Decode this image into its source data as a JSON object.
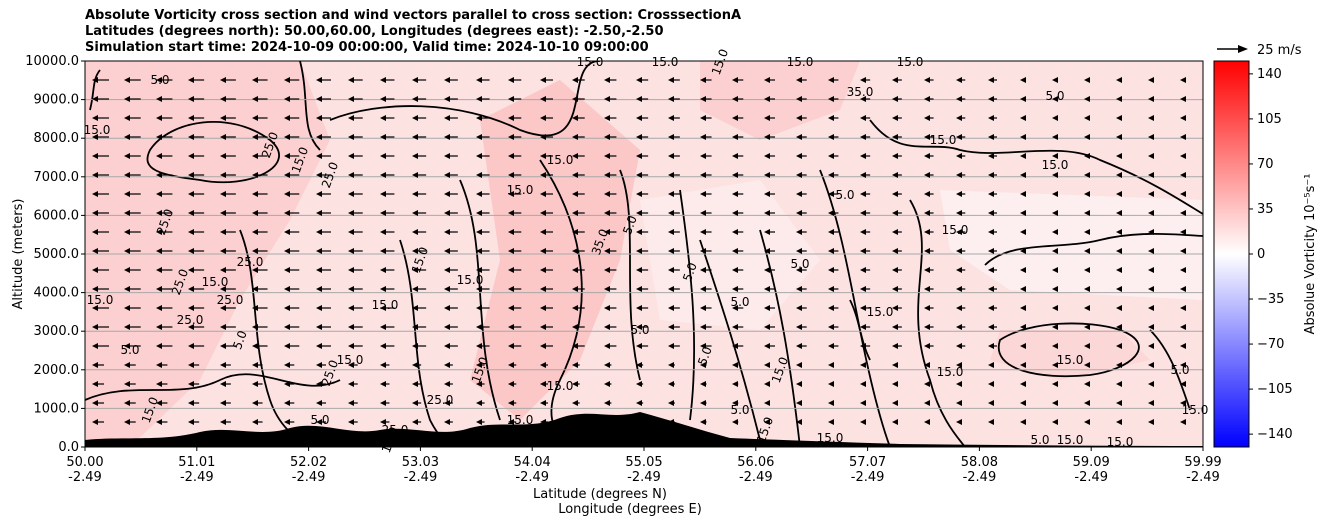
{
  "chart_data": {
    "type": "heatmap",
    "title_lines": [
      "Absolute Vorticity cross section and wind vectors parallel to cross section: CrosssectionA",
      "Latitudes (degrees north): 50.00,60.00, Longitudes (degrees east): -2.50,-2.50",
      "Simulation start time: 2024-10-09 00:00:00, Valid time: 2024-10-10 09:00:00"
    ],
    "ylabel": "Altitude (meters)",
    "xlabel_lines": [
      "Latitude (degrees N)",
      "Longitude (degrees E)"
    ],
    "ylim": [
      0,
      10000
    ],
    "y_ticks": [
      "0.0",
      "1000.0",
      "2000.0",
      "3000.0",
      "4000.0",
      "5000.0",
      "6000.0",
      "7000.0",
      "8000.0",
      "9000.0",
      "10000.0"
    ],
    "x_ticks": [
      {
        "lat": "50.00",
        "lon": "-2.49"
      },
      {
        "lat": "51.01",
        "lon": "-2.49"
      },
      {
        "lat": "52.02",
        "lon": "-2.49"
      },
      {
        "lat": "53.03",
        "lon": "-2.49"
      },
      {
        "lat": "54.04",
        "lon": "-2.49"
      },
      {
        "lat": "55.05",
        "lon": "-2.49"
      },
      {
        "lat": "56.06",
        "lon": "-2.49"
      },
      {
        "lat": "57.07",
        "lon": "-2.49"
      },
      {
        "lat": "58.08",
        "lon": "-2.49"
      },
      {
        "lat": "59.09",
        "lon": "-2.49"
      },
      {
        "lat": "59.99",
        "lon": "-2.49"
      }
    ],
    "grid": "horizontal",
    "quiver_key": "25 m/s",
    "colorbar": {
      "label": "Absolue Vorticity 10⁻⁵s⁻¹",
      "range": [
        -150,
        150
      ],
      "ticks": [
        "140",
        "105",
        "70",
        "35",
        "0",
        "−35",
        "−70",
        "−105",
        "−140"
      ],
      "colormap": "bwr",
      "colors": {
        "low": "#0000ff",
        "mid": "#ffffff",
        "high": "#ff0000"
      }
    },
    "contour_labels": [
      "5.0",
      "15.0",
      "25.0",
      "35.0"
    ]
  }
}
